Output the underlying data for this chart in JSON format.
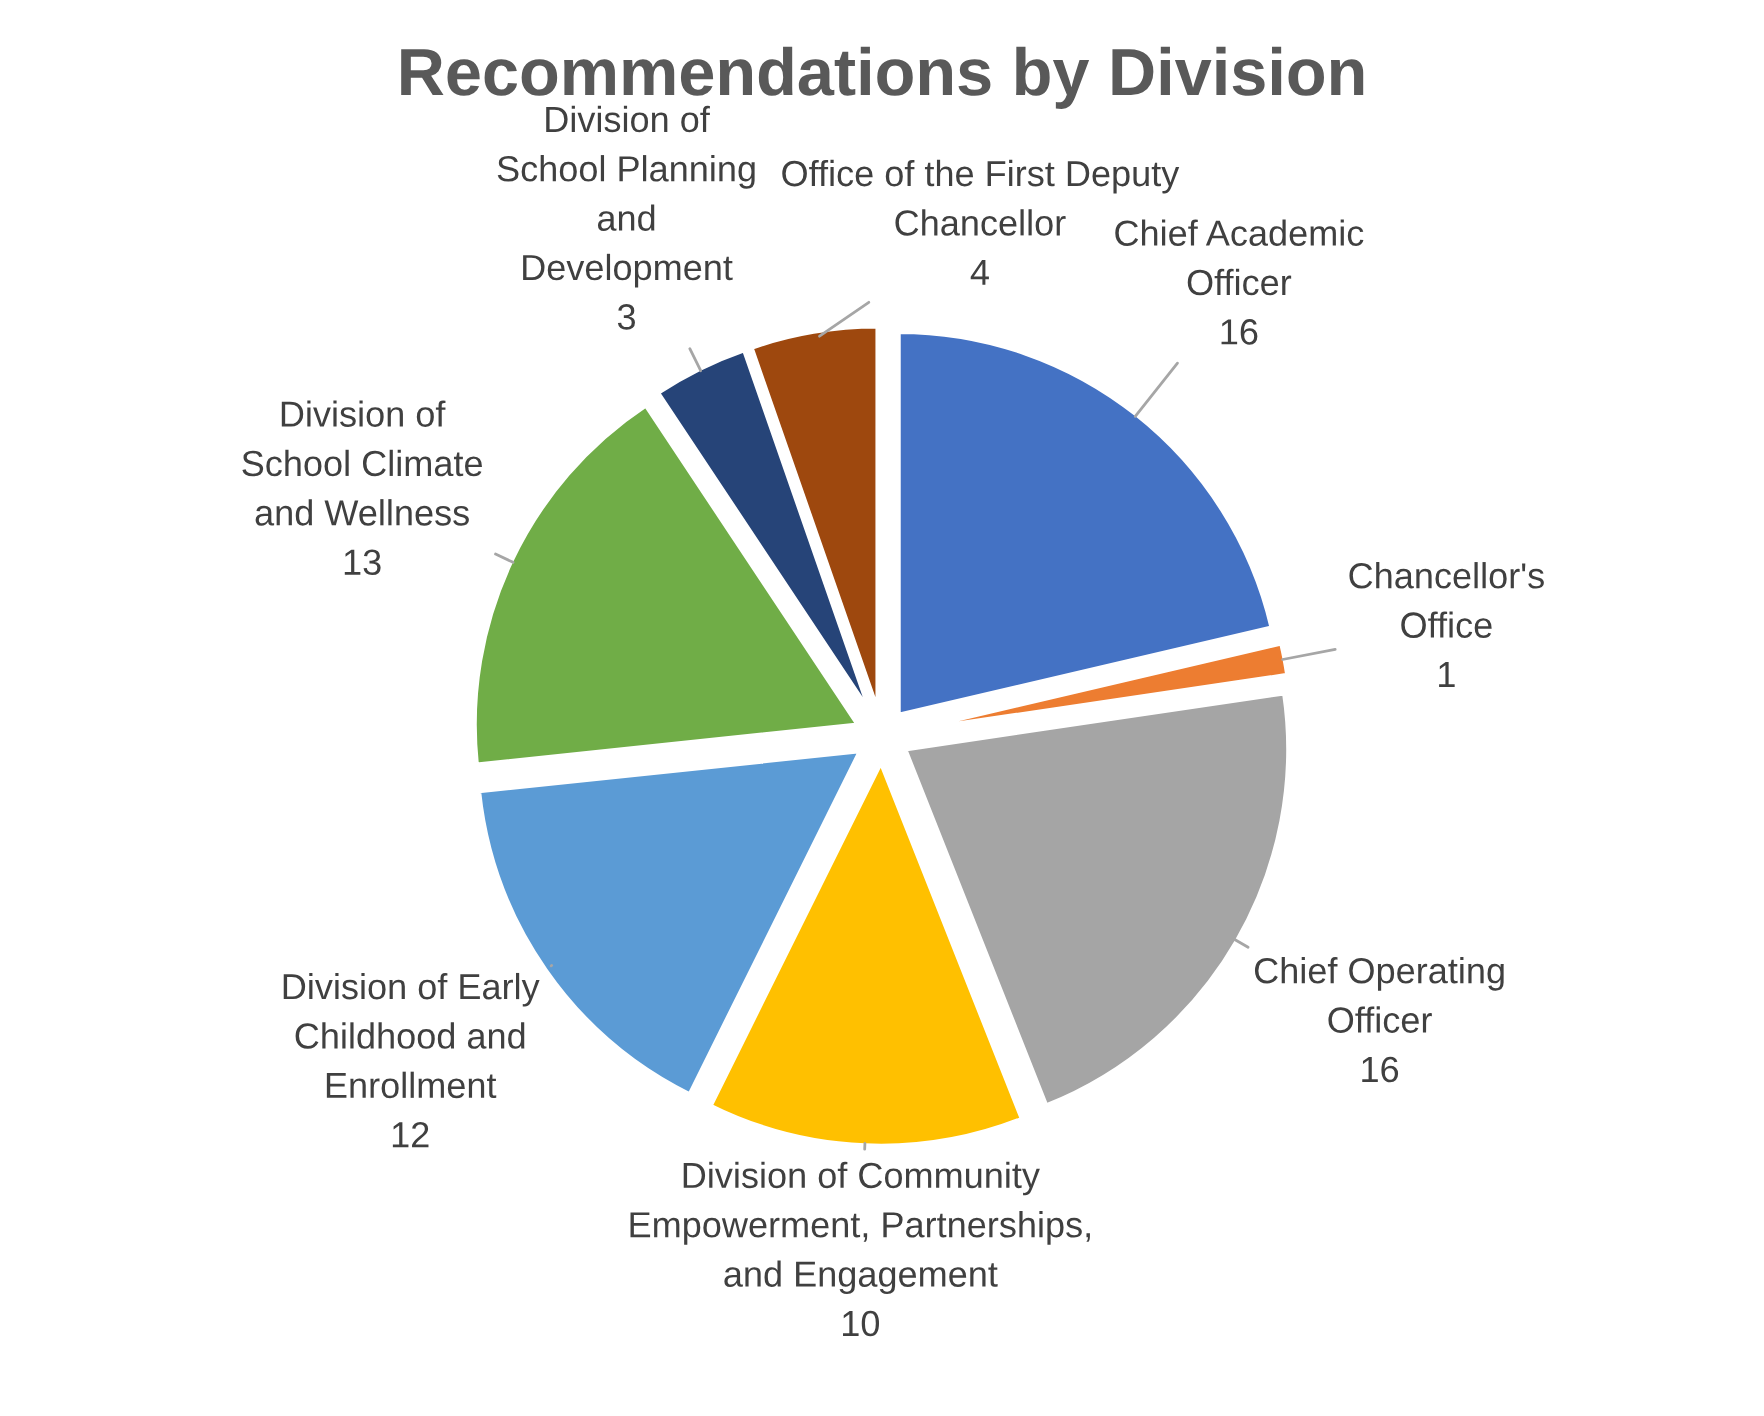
{
  "chart_data": {
    "type": "pie",
    "title": "Recommendations by Division",
    "categories": [
      "Chief Academic\nOfficer",
      "Chancellor's\nOffice",
      "Chief Operating\nOfficer",
      "Division of Community\nEmpowerment, Partnerships,\nand Engagement",
      "Division of Early\nChildhood and\nEnrollment",
      "Division of\nSchool Climate\nand Wellness",
      "Division of\nSchool Planning\nand\nDevelopment",
      "Office of the First Deputy\nChancellor"
    ],
    "values": [
      16,
      1,
      16,
      10,
      12,
      13,
      3,
      4
    ],
    "colors": [
      "#4472c4",
      "#ed7d31",
      "#a5a5a5",
      "#ffc000",
      "#5b9bd5",
      "#70ad47",
      "#264478",
      "#9e480e"
    ],
    "data_labels": true,
    "legend": false
  }
}
